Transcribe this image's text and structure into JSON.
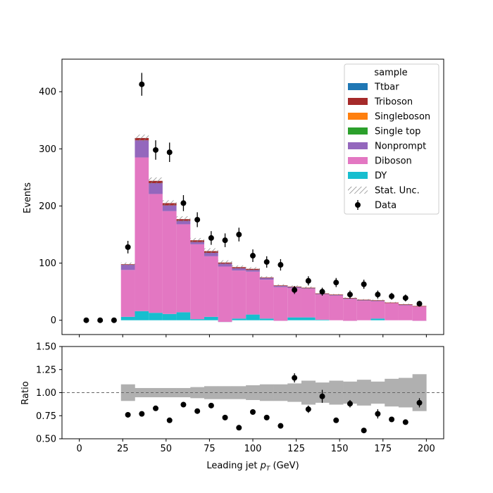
{
  "chart_data": [
    {
      "type": "bar",
      "subtype": "stacked-histogram-with-data",
      "ylabel": "Events",
      "xlim": [
        -10,
        210
      ],
      "ylim": [
        -25,
        457
      ],
      "yticks": [
        0,
        100,
        200,
        300,
        400
      ],
      "bin_edges": [
        24,
        32,
        40,
        48,
        56,
        64,
        72,
        80,
        88,
        96,
        104,
        112,
        120,
        128,
        136,
        144,
        152,
        160,
        168,
        176,
        184,
        192,
        200
      ],
      "legend": {
        "title": "sample",
        "placement": "upper right",
        "entries": [
          "Ttbar",
          "Triboson",
          "Singleboson",
          "Single top",
          "Nonprompt",
          "Diboson",
          "DY",
          "Stat. Unc.",
          "Data"
        ]
      },
      "series": [
        {
          "name": "DY",
          "color": "#17becf",
          "values": [
            6,
            16,
            13,
            11,
            14,
            2,
            6,
            -3,
            3,
            10,
            3,
            -1,
            5,
            5,
            1,
            0,
            -1,
            0,
            3,
            0,
            0,
            -1
          ]
        },
        {
          "name": "Diboson",
          "color": "#e377c2",
          "values": [
            82,
            269,
            208,
            180,
            154,
            131,
            106,
            97,
            84,
            75,
            68,
            59,
            51,
            50,
            44,
            43,
            38,
            34,
            30,
            30,
            26,
            25
          ]
        },
        {
          "name": "Nonprompt",
          "color": "#9467bd",
          "values": [
            9,
            30,
            19,
            10,
            6,
            4,
            6,
            5,
            4,
            3,
            3,
            2,
            2,
            1,
            1,
            1,
            1,
            1,
            1,
            0,
            1,
            0
          ]
        },
        {
          "name": "Single top",
          "color": "#2ca02c",
          "values": [
            0,
            0,
            0,
            0,
            0,
            0,
            0,
            0,
            0,
            0,
            0,
            0,
            0,
            0,
            0,
            0,
            0,
            0,
            0,
            0,
            0,
            0
          ]
        },
        {
          "name": "Singleboson",
          "color": "#ff7f0e",
          "values": [
            0,
            0,
            0,
            0,
            0,
            0,
            0,
            0,
            0,
            0,
            0,
            0,
            0,
            0,
            0,
            0,
            0,
            0,
            0,
            0,
            0,
            0
          ]
        },
        {
          "name": "Triboson",
          "color": "#a52a2a",
          "values": [
            1,
            4,
            4,
            4,
            3,
            3,
            3,
            2,
            2,
            2,
            1,
            1,
            1,
            1,
            1,
            1,
            1,
            1,
            1,
            1,
            1,
            1
          ]
        },
        {
          "name": "Ttbar",
          "color": "#1f77b4",
          "values": [
            0,
            0,
            0,
            0,
            0,
            0,
            0,
            0,
            0,
            0,
            0,
            0,
            0,
            0,
            0,
            0,
            0,
            0,
            0,
            0,
            0,
            0
          ]
        }
      ],
      "stat_unc_band": {
        "color": "#808080",
        "halfwidth": [
          3,
          6,
          6,
          5,
          5,
          4,
          5,
          4,
          3,
          3,
          2,
          2,
          2,
          2,
          1,
          1,
          1,
          1,
          1,
          1,
          1,
          1
        ]
      },
      "data_points": {
        "name": "Data",
        "color": "#000000",
        "x": [
          4,
          12,
          20,
          28,
          36,
          44,
          52,
          60,
          68,
          76,
          84,
          92,
          100,
          108,
          116,
          124,
          132,
          140,
          148,
          156,
          164,
          172,
          180,
          188,
          196
        ],
        "y": [
          0,
          0,
          0,
          128,
          413,
          298,
          294,
          205,
          176,
          144,
          140,
          150,
          113,
          102,
          97,
          53,
          69,
          50,
          66,
          45,
          63,
          45,
          42,
          39,
          29
        ],
        "yerr": [
          0,
          0,
          0,
          11,
          20,
          17,
          17,
          14,
          13,
          12,
          12,
          12,
          11,
          10,
          10,
          7,
          8,
          7,
          8,
          7,
          8,
          7,
          6,
          6,
          5
        ]
      }
    },
    {
      "type": "scatter",
      "subtype": "ratio-panel",
      "xlabel": "Leading jet  $p_T$ (GeV)",
      "ylabel": "Ratio",
      "xlim": [
        -10,
        210
      ],
      "ylim": [
        0.5,
        1.5
      ],
      "xticks": [
        0,
        25,
        50,
        75,
        100,
        125,
        150,
        175,
        200
      ],
      "yticks": [
        0.5,
        0.75,
        1.0,
        1.25,
        1.5
      ],
      "reference_line": 1.0,
      "unc_band": {
        "color": "#b0b0b0",
        "bin_edges": [
          24,
          32,
          40,
          48,
          56,
          64,
          72,
          80,
          88,
          96,
          104,
          112,
          120,
          128,
          136,
          144,
          152,
          160,
          168,
          176,
          184,
          192,
          200
        ],
        "halfwidth": [
          0.09,
          0.05,
          0.05,
          0.05,
          0.05,
          0.06,
          0.07,
          0.07,
          0.07,
          0.08,
          0.09,
          0.09,
          0.1,
          0.13,
          0.11,
          0.13,
          0.12,
          0.14,
          0.12,
          0.15,
          0.16,
          0.2
        ]
      },
      "points": {
        "x": [
          28,
          36,
          44,
          52,
          60,
          68,
          76,
          84,
          92,
          100,
          108,
          116,
          124,
          132,
          140,
          148,
          156,
          164,
          172,
          180,
          188,
          196
        ],
        "y": [
          0.76,
          0.77,
          0.83,
          0.7,
          0.87,
          0.8,
          0.86,
          0.73,
          0.62,
          0.79,
          0.73,
          0.64,
          1.16,
          0.82,
          0.96,
          0.7,
          0.88,
          0.59,
          0.77,
          0.71,
          0.68,
          0.89
        ],
        "yerr": [
          0,
          0,
          0,
          0,
          0,
          0,
          0,
          0,
          0,
          0,
          0,
          0,
          0.05,
          0.04,
          0.07,
          0,
          0.04,
          0,
          0.05,
          0,
          0,
          0.05
        ]
      }
    }
  ]
}
